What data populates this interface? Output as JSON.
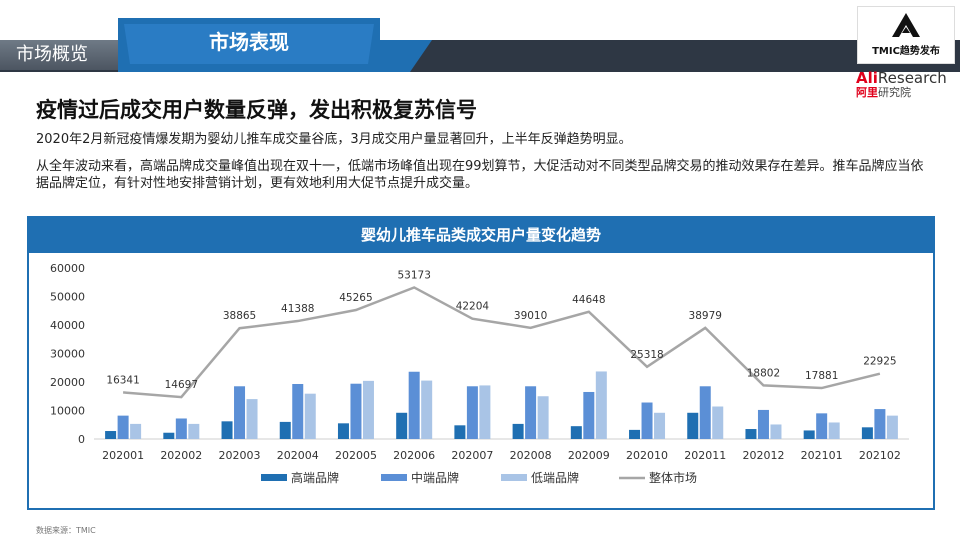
{
  "header": {
    "section_label": "市场概览",
    "tab_label": "市场表现",
    "logo_tmic_text": "TMIC趋势发布",
    "logo_ali_line1_brand": "Ali",
    "logo_ali_line1_rest": "Research",
    "logo_ali_line2_brand": "阿里",
    "logo_ali_line2_rest": "研究院"
  },
  "headline": "疫情过后成交用户数量反弹，发出积极复苏信号",
  "paragraphs": [
    "2020年2月新冠疫情爆发期为婴幼儿推车成交量谷底，3月成交用户量显著回升，上半年反弹趋势明显。",
    "从全年波动来看，高端品牌成交量峰值出现在双十一，低端市场峰值出现在99划算节，大促活动对不同类型品牌交易的推动效果存在差异。推车品牌应当依据品牌定位，有针对性地安排营销计划，更有效地利用大促节点提升成交量。"
  ],
  "source": "数据来源：TMIC",
  "colors": {
    "accent": "#1f6fb2",
    "high": "#1f6fb2",
    "mid": "#5b8fd6",
    "low": "#a9c4e6",
    "total": "#a6a6a6"
  },
  "chart_data": {
    "type": "bar",
    "title": "婴幼儿推车品类成交用户量变化趋势",
    "categories": [
      "202001",
      "202002",
      "202003",
      "202004",
      "202005",
      "202006",
      "202007",
      "202008",
      "202009",
      "202010",
      "202011",
      "202012",
      "202101",
      "202102"
    ],
    "ylim": [
      0,
      60000
    ],
    "yticks": [
      0,
      10000,
      20000,
      30000,
      40000,
      50000,
      60000
    ],
    "grid": false,
    "legend_position": "bottom",
    "series": [
      {
        "name": "高端品牌",
        "type": "bar",
        "values": [
          2800,
          2200,
          6200,
          6000,
          5500,
          9200,
          4800,
          5300,
          4500,
          3200,
          9200,
          3500,
          3000,
          4100
        ]
      },
      {
        "name": "中端品牌",
        "type": "bar",
        "values": [
          8200,
          7200,
          18500,
          19300,
          19400,
          23600,
          18500,
          18500,
          16500,
          12800,
          18500,
          10200,
          9000,
          10500
        ]
      },
      {
        "name": "低端品牌",
        "type": "bar",
        "values": [
          5300,
          5300,
          14000,
          15900,
          20400,
          20500,
          18800,
          15000,
          23700,
          9200,
          11400,
          5100,
          5800,
          8200
        ]
      },
      {
        "name": "整体市场",
        "type": "line",
        "values": [
          16341,
          14697,
          38865,
          41388,
          45265,
          53173,
          42204,
          39010,
          44648,
          25318,
          38979,
          18802,
          17881,
          22925
        ]
      }
    ]
  }
}
